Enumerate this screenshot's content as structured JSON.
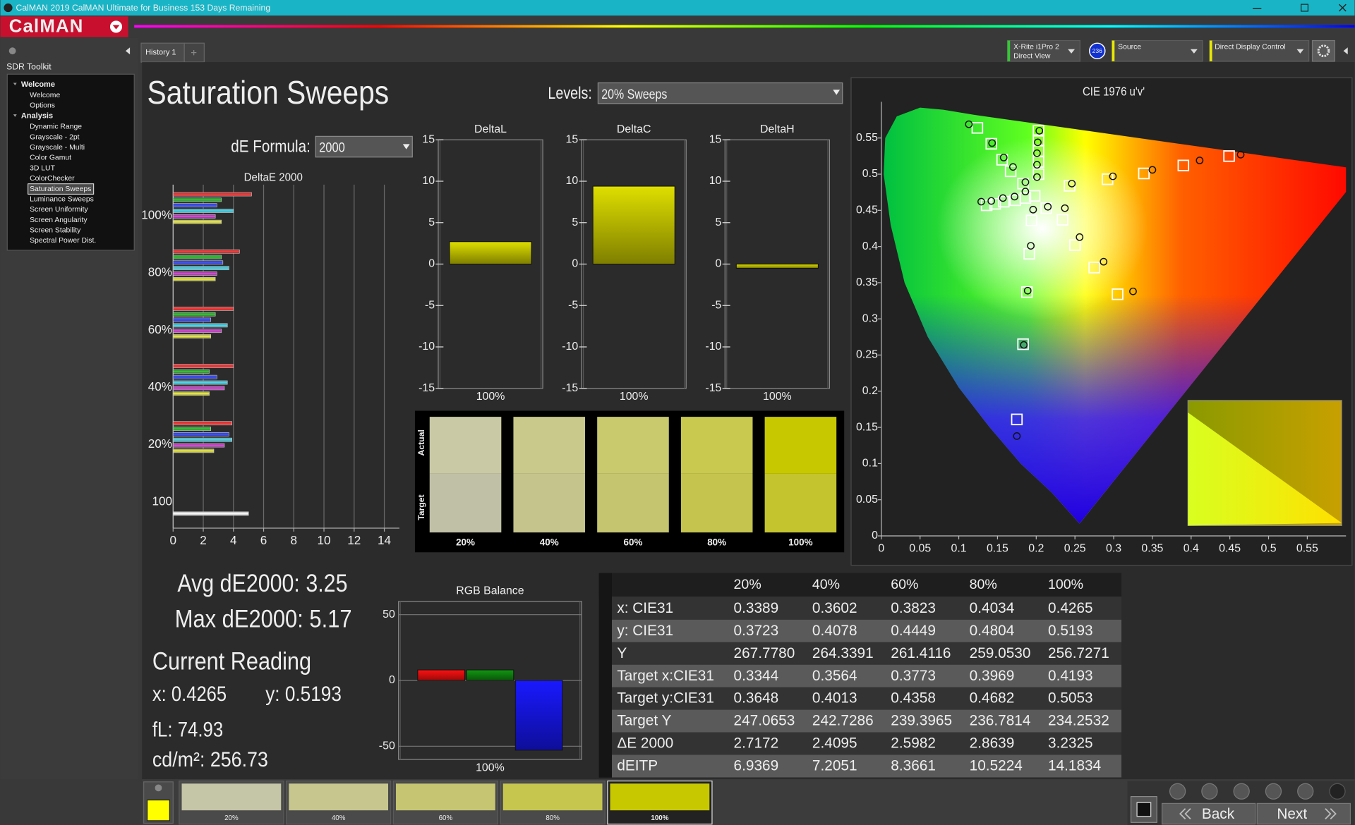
{
  "window": {
    "title": "CalMAN 2019 CalMAN Ultimate for Business 153 Days Remaining"
  },
  "app": {
    "logo": "CalMAN"
  },
  "sidebar": {
    "title": "SDR Toolkit",
    "tree": [
      {
        "label": "Welcome",
        "children": [
          {
            "label": "Welcome"
          },
          {
            "label": "Options"
          }
        ]
      },
      {
        "label": "Analysis",
        "children": [
          {
            "label": "Dynamic Range"
          },
          {
            "label": "Grayscale - 2pt"
          },
          {
            "label": "Grayscale - Multi"
          },
          {
            "label": "Color Gamut"
          },
          {
            "label": "3D LUT"
          },
          {
            "label": "ColorChecker"
          },
          {
            "label": "Saturation Sweeps",
            "selected": true
          },
          {
            "label": "Luminance Sweeps"
          },
          {
            "label": "Screen Uniformity"
          },
          {
            "label": "Screen Angularity"
          },
          {
            "label": "Screen Stability"
          },
          {
            "label": "Spectral Power Dist."
          }
        ]
      }
    ]
  },
  "tabs": [
    "History 1"
  ],
  "toolbar": {
    "meter": [
      "X-Rite i1Pro 2",
      "Direct View"
    ],
    "meter_badge": "236",
    "source": "Source",
    "display": "Direct Display Control"
  },
  "page": {
    "title": "Saturation Sweeps",
    "levels_label": "Levels:",
    "levels_value": "20% Sweeps",
    "formula_label": "dE Formula:",
    "formula_value": "2000"
  },
  "chart_data": [
    {
      "type": "hbar",
      "title": "DeltaE 2000",
      "categories": [
        "100%",
        "80%",
        "60%",
        "40%",
        "20%",
        "100"
      ],
      "series": [
        {
          "color": "#d03030",
          "values": [
            5.2,
            4.4,
            4.0,
            4.0,
            3.9,
            null
          ]
        },
        {
          "color": "#30a030",
          "values": [
            3.2,
            3.2,
            2.8,
            2.4,
            2.5,
            null
          ]
        },
        {
          "color": "#3545d0",
          "values": [
            2.9,
            3.3,
            2.5,
            2.9,
            3.7,
            null
          ]
        },
        {
          "color": "#40b0c0",
          "values": [
            4.0,
            3.7,
            3.6,
            3.6,
            3.9,
            null
          ]
        },
        {
          "color": "#b040b0",
          "values": [
            2.8,
            2.9,
            3.2,
            3.4,
            3.4,
            null
          ]
        },
        {
          "color": "#c0c040",
          "values": [
            3.2,
            2.8,
            2.5,
            2.4,
            2.7,
            null
          ]
        },
        {
          "color": "#e0e0e0",
          "values": [
            null,
            null,
            null,
            null,
            null,
            5.0
          ]
        }
      ],
      "xlim": [
        0,
        15
      ],
      "xticks": [
        0,
        2,
        4,
        6,
        8,
        10,
        12,
        14
      ],
      "grid": true
    },
    {
      "type": "bar",
      "title": "DeltaL",
      "categories": [
        "100%"
      ],
      "values": [
        2.7
      ],
      "color": "#d4d400",
      "ylim": [
        -15,
        15
      ],
      "yticks": [
        15,
        10,
        5,
        0,
        -5,
        -10,
        -15
      ],
      "grid": false
    },
    {
      "type": "bar",
      "title": "DeltaC",
      "categories": [
        "100%"
      ],
      "values": [
        9.4
      ],
      "color": "#d4d400",
      "ylim": [
        -15,
        15
      ],
      "yticks": [
        15,
        10,
        5,
        0,
        -5,
        -10,
        -15
      ],
      "grid": false
    },
    {
      "type": "bar",
      "title": "DeltaH",
      "categories": [
        "100%"
      ],
      "values": [
        -0.5
      ],
      "color": "#d4d400",
      "ylim": [
        -15,
        15
      ],
      "yticks": [
        15,
        10,
        5,
        0,
        -5,
        -10,
        -15
      ],
      "grid": false
    },
    {
      "type": "bar",
      "title": "RGB Balance",
      "categories": [
        "100%"
      ],
      "series": [
        {
          "color": "#ff1010",
          "values": [
            8
          ]
        },
        {
          "color": "#109010",
          "values": [
            8
          ]
        },
        {
          "color": "#1818ff",
          "values": [
            -53
          ]
        }
      ],
      "ylim": [
        -60,
        60
      ],
      "yticks": [
        50,
        0,
        -50
      ],
      "grid": true
    },
    {
      "type": "scatter",
      "title": "CIE 1976 u'v'",
      "xlim": [
        0,
        0.6
      ],
      "ylim": [
        0,
        0.6
      ],
      "xticks": [
        0,
        0.05,
        0.1,
        0.15,
        0.2,
        0.25,
        0.3,
        0.35,
        0.4,
        0.45,
        0.5,
        0.55
      ],
      "yticks": [
        0,
        0.05,
        0.1,
        0.15,
        0.2,
        0.25,
        0.3,
        0.35,
        0.4,
        0.45,
        0.5,
        0.55
      ],
      "series": [
        {
          "marker": "square",
          "color": "#ffffff",
          "x": [
            0.198,
            0.243,
            0.292,
            0.339,
            0.39,
            0.449,
            0.183,
            0.167,
            0.156,
            0.142,
            0.124,
            0.194,
            0.191,
            0.188,
            0.183,
            0.175,
            0.186,
            0.173,
            0.158,
            0.147,
            0.136,
            0.213,
            0.234,
            0.25,
            0.275,
            0.305,
            0.203,
            0.203,
            0.203,
            0.203,
            0.203
          ],
          "y": [
            0.47,
            0.484,
            0.493,
            0.501,
            0.512,
            0.525,
            0.487,
            0.504,
            0.52,
            0.542,
            0.564,
            0.436,
            0.39,
            0.337,
            0.265,
            0.161,
            0.467,
            0.464,
            0.462,
            0.459,
            0.457,
            0.453,
            0.437,
            0.402,
            0.371,
            0.334,
            0.5,
            0.517,
            0.532,
            0.547,
            0.56
          ]
        },
        {
          "marker": "circle",
          "color": "#111111",
          "x": [
            0.246,
            0.299,
            0.35,
            0.411,
            0.464,
            0.186,
            0.17,
            0.158,
            0.143,
            0.113,
            0.196,
            0.193,
            0.189,
            0.184,
            0.175,
            0.186,
            0.172,
            0.157,
            0.142,
            0.129,
            0.215,
            0.237,
            0.256,
            0.287,
            0.325,
            0.201,
            0.201,
            0.201,
            0.202,
            0.204
          ],
          "y": [
            0.487,
            0.497,
            0.506,
            0.519,
            0.527,
            0.489,
            0.51,
            0.523,
            0.543,
            0.569,
            0.451,
            0.401,
            0.339,
            0.264,
            0.138,
            0.476,
            0.469,
            0.467,
            0.463,
            0.462,
            0.455,
            0.453,
            0.413,
            0.379,
            0.338,
            0.496,
            0.513,
            0.529,
            0.544,
            0.56
          ]
        }
      ]
    }
  ],
  "swatches": {
    "row_labels": [
      "Actual",
      "Target"
    ],
    "labels": [
      "20%",
      "40%",
      "60%",
      "80%",
      "100%"
    ],
    "actual": [
      "#c9c9a5",
      "#c9c98b",
      "#c9c96e",
      "#c9c94f",
      "#c8c800"
    ],
    "target": [
      "#c0c0a6",
      "#c4c48c",
      "#c5c570",
      "#c4c44f",
      "#c4c42e"
    ]
  },
  "stats": {
    "avg": "Avg dE2000: 3.25",
    "max": "Max dE2000: 5.17",
    "current": "Current Reading",
    "x": "x: 0.4265",
    "y": "y: 0.5193",
    "fl": "fL: 74.93",
    "cdm2": "cd/m²: 256.73"
  },
  "table": {
    "header": [
      "20%",
      "40%",
      "60%",
      "80%",
      "100%"
    ],
    "rows": [
      [
        "x: CIE31",
        "0.3389",
        "0.3602",
        "0.3823",
        "0.4034",
        "0.4265"
      ],
      [
        "y: CIE31",
        "0.3723",
        "0.4078",
        "0.4449",
        "0.4804",
        "0.5193"
      ],
      [
        "Y",
        "267.7780",
        "264.3391",
        "261.4116",
        "259.0530",
        "256.7271"
      ],
      [
        "Target x:CIE31",
        "0.3344",
        "0.3564",
        "0.3773",
        "0.3969",
        "0.4193"
      ],
      [
        "Target y:CIE31",
        "0.3648",
        "0.4013",
        "0.4358",
        "0.4682",
        "0.5053"
      ],
      [
        "Target Y",
        "247.0653",
        "242.7286",
        "239.3965",
        "236.7814",
        "234.2532"
      ],
      [
        "ΔE 2000",
        "2.7172",
        "2.4095",
        "2.5982",
        "2.8639",
        "3.2325"
      ],
      [
        "dEITP",
        "6.9369",
        "7.2051",
        "8.3661",
        "10.5224",
        "14.1834"
      ]
    ]
  },
  "filmstrip": {
    "labels": [
      "20%",
      "40%",
      "60%",
      "80%",
      "100%"
    ],
    "colors": [
      "#c5c5a7",
      "#c6c68e",
      "#c6c672",
      "#c6c64f",
      "#c8c800"
    ],
    "selected": [
      false,
      false,
      false,
      false,
      true
    ],
    "current_color": "#ffff00"
  },
  "nav": {
    "back": "Back",
    "next": "Next"
  }
}
